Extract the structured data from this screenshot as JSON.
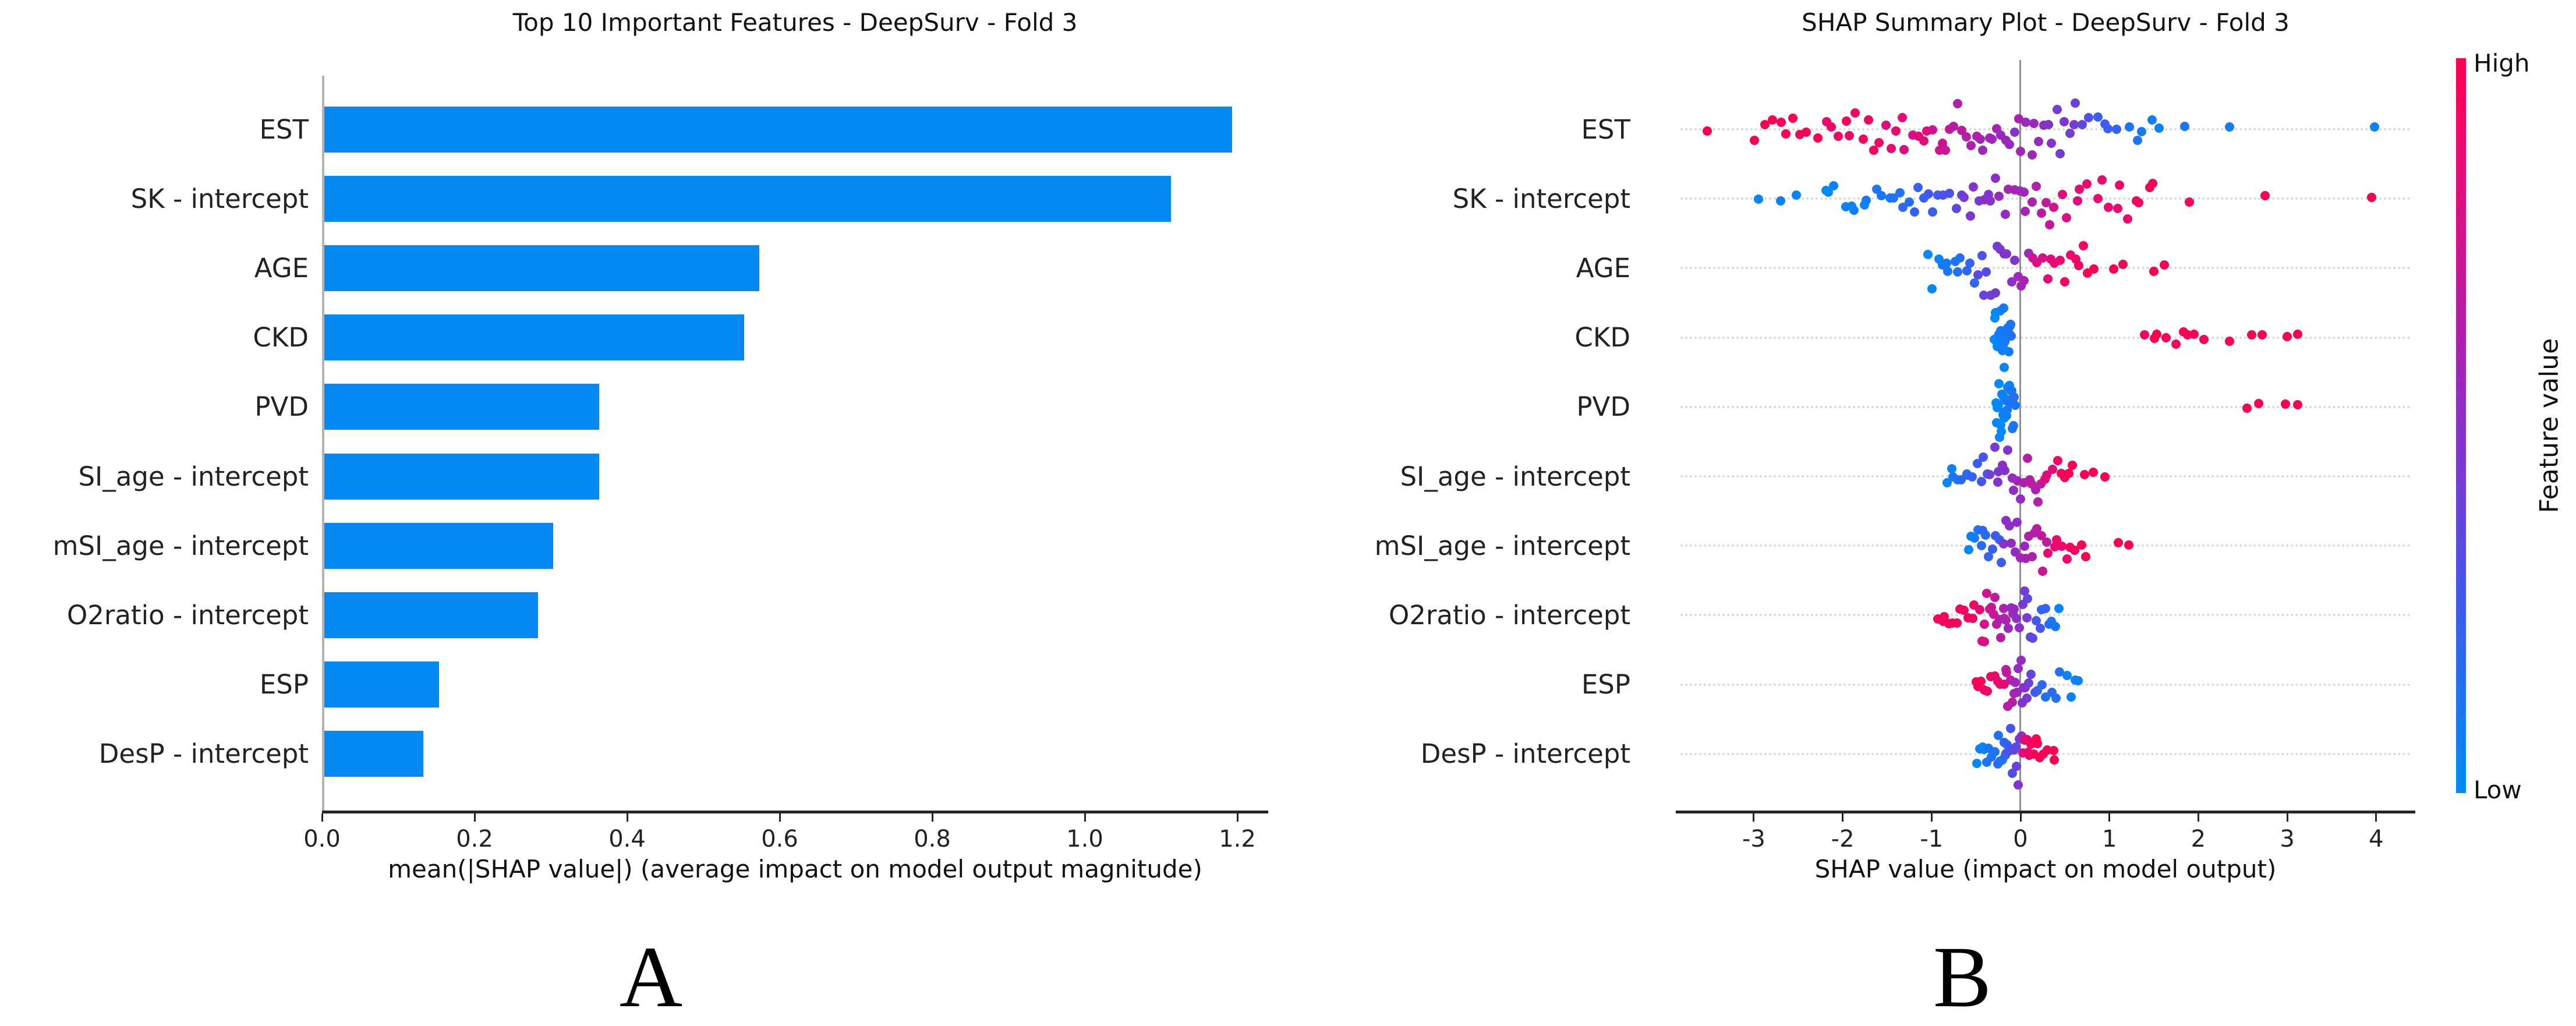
{
  "panel_labels": {
    "a": "A",
    "b": "B"
  },
  "chart_data": [
    {
      "type": "bar",
      "orientation": "horizontal",
      "title": "Top 10 Important Features - DeepSurv - Fold 3",
      "xlabel": "mean(|SHAP value|) (average impact on model output magnitude)",
      "categories": [
        "EST",
        "SK - intercept",
        "AGE",
        "CKD",
        "PVD",
        "SI_age - intercept",
        "mSI_age - intercept",
        "O2ratio - intercept",
        "ESP",
        "DesP - intercept"
      ],
      "values": [
        1.19,
        1.11,
        0.57,
        0.55,
        0.36,
        0.36,
        0.3,
        0.28,
        0.15,
        0.13
      ],
      "x_ticks": [
        "0.0",
        "0.2",
        "0.4",
        "0.6",
        "0.8",
        "1.0",
        "1.2"
      ],
      "xlim": [
        0,
        1.24
      ],
      "bar_color": "#0589f5",
      "grid": false
    },
    {
      "type": "scatter",
      "variant": "shap-beeswarm",
      "title": "SHAP Summary Plot - DeepSurv - Fold 3",
      "xlabel": "SHAP value (impact on model output)",
      "categories": [
        "EST",
        "SK - intercept",
        "AGE",
        "CKD",
        "PVD",
        "SI_age - intercept",
        "mSI_age - intercept",
        "O2ratio - intercept",
        "ESP",
        "DesP - intercept"
      ],
      "x_ticks": [
        "-3",
        "-2",
        "-1",
        "0",
        "1",
        "2",
        "3",
        "4"
      ],
      "xlim": [
        -3.87,
        4.44
      ],
      "colorbar": {
        "high": "High",
        "low": "Low",
        "label": "Feature value",
        "low_color": "#008bfb",
        "mid_color": "#8b2fc9",
        "high_color": "#ff0051"
      },
      "colormap_stops": [
        [
          0,
          "#008bfb"
        ],
        [
          0.25,
          "#3d5bef"
        ],
        [
          0.5,
          "#8b2fc9"
        ],
        [
          0.75,
          "#d3128c"
        ],
        [
          1,
          "#ff0051"
        ]
      ],
      "cluster_format": "[shap_x_min, shap_x_max, n_points, feature_value_at_min(0=low,1=high), feature_value_at_max, y_jitter_px]",
      "rows": [
        {
          "feature": "EST",
          "clusters": [
            [
              -3.0,
              -2.0,
              12,
              1.0,
              0.92,
              28
            ],
            [
              -2.0,
              -1.0,
              16,
              0.95,
              0.78,
              45
            ],
            [
              -1.0,
              -0.05,
              20,
              0.75,
              0.5,
              55
            ],
            [
              -0.05,
              0.7,
              16,
              0.6,
              0.35,
              55
            ],
            [
              0.7,
              1.6,
              10,
              0.3,
              0.05,
              40
            ]
          ],
          "outliers": [
            [
              -3.52,
              1.0
            ],
            [
              1.85,
              0.12
            ],
            [
              2.35,
              0.08
            ],
            [
              3.98,
              0.05
            ]
          ]
        },
        {
          "feature": "SK - intercept",
          "clusters": [
            [
              -2.25,
              -1.45,
              11,
              0.0,
              0.1,
              30
            ],
            [
              -1.45,
              -0.65,
              14,
              0.12,
              0.35,
              45
            ],
            [
              -0.65,
              0.35,
              20,
              0.4,
              0.68,
              60
            ],
            [
              0.35,
              1.55,
              16,
              0.75,
              1.0,
              45
            ]
          ],
          "outliers": [
            [
              -2.95,
              0.02
            ],
            [
              -2.7,
              0.05
            ],
            [
              -2.52,
              0.03
            ],
            [
              1.9,
              0.95
            ],
            [
              2.75,
              0.97
            ],
            [
              3.95,
              1.0
            ]
          ]
        },
        {
          "feature": "AGE",
          "clusters": [
            [
              -1.05,
              -0.5,
              12,
              0.0,
              0.2,
              40
            ],
            [
              -0.5,
              0.1,
              16,
              0.3,
              0.6,
              55
            ],
            [
              0.1,
              0.85,
              14,
              0.75,
              1.0,
              45
            ]
          ],
          "outliers": [
            [
              1.05,
              1.0
            ],
            [
              1.15,
              0.97
            ],
            [
              1.5,
              1.0
            ],
            [
              1.62,
              0.98
            ]
          ]
        },
        {
          "feature": "CKD",
          "clusters": [
            [
              -0.3,
              -0.1,
              26,
              0.0,
              0.12,
              62
            ],
            [
              1.35,
              2.1,
              9,
              0.95,
              1.0,
              18
            ]
          ],
          "outliers": [
            [
              2.35,
              1.0
            ],
            [
              2.6,
              0.97
            ],
            [
              2.72,
              1.0
            ],
            [
              3.0,
              1.0
            ],
            [
              3.12,
              0.98
            ]
          ]
        },
        {
          "feature": "PVD",
          "clusters": [
            [
              -0.28,
              -0.06,
              26,
              0.0,
              0.12,
              62
            ]
          ],
          "outliers": [
            [
              2.55,
              1.0
            ],
            [
              2.68,
              0.98
            ],
            [
              2.98,
              1.0
            ],
            [
              3.12,
              1.0
            ]
          ]
        },
        {
          "feature": "SI_age - intercept",
          "clusters": [
            [
              -0.85,
              -0.35,
              12,
              0.05,
              0.3,
              40
            ],
            [
              -0.35,
              0.25,
              18,
              0.4,
              0.7,
              58
            ],
            [
              0.25,
              0.6,
              8,
              0.8,
              1.0,
              30
            ]
          ],
          "outliers": [
            [
              0.72,
              1.0
            ],
            [
              0.82,
              0.97
            ],
            [
              0.95,
              1.0
            ]
          ]
        },
        {
          "feature": "mSI_age - intercept",
          "clusters": [
            [
              -0.6,
              -0.2,
              12,
              0.05,
              0.3,
              45
            ],
            [
              -0.2,
              0.3,
              16,
              0.45,
              0.72,
              58
            ],
            [
              0.3,
              0.75,
              9,
              0.85,
              1.0,
              25
            ]
          ],
          "outliers": [
            [
              1.1,
              1.0
            ],
            [
              1.22,
              0.98
            ]
          ]
        },
        {
          "feature": "O2ratio - intercept",
          "clusters": [
            [
              -0.95,
              -0.45,
              12,
              1.0,
              0.88,
              38
            ],
            [
              -0.45,
              -0.1,
              16,
              0.8,
              0.55,
              55
            ],
            [
              -0.1,
              0.15,
              10,
              0.55,
              0.35,
              55
            ],
            [
              0.15,
              0.45,
              8,
              0.3,
              0.05,
              35
            ]
          ],
          "outliers": []
        },
        {
          "feature": "ESP",
          "clusters": [
            [
              -0.52,
              -0.18,
              10,
              1.0,
              0.85,
              35
            ],
            [
              -0.18,
              0.12,
              16,
              0.7,
              0.4,
              58
            ],
            [
              0.12,
              0.68,
              11,
              0.25,
              0.0,
              40
            ]
          ],
          "outliers": []
        },
        {
          "feature": "DesP - intercept",
          "clusters": [
            [
              -0.5,
              -0.25,
              9,
              0.0,
              0.15,
              35
            ],
            [
              -0.25,
              0.02,
              16,
              0.1,
              0.5,
              58
            ],
            [
              0.02,
              0.2,
              10,
              0.8,
              1.0,
              50
            ],
            [
              0.2,
              0.42,
              5,
              0.95,
              1.0,
              20
            ]
          ],
          "outliers": []
        }
      ]
    }
  ]
}
